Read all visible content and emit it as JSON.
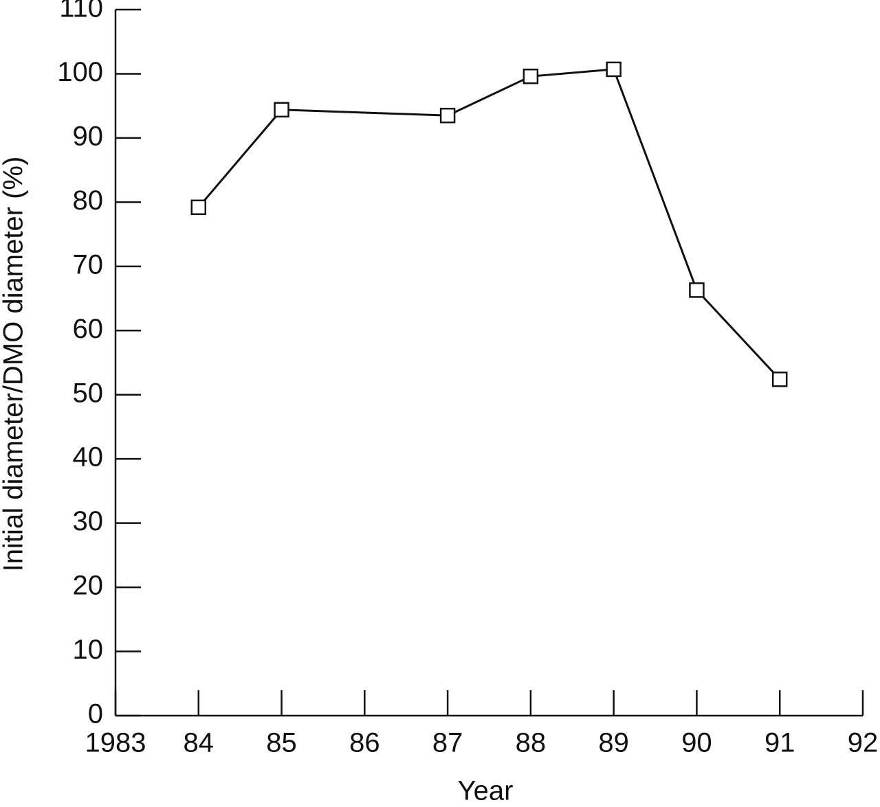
{
  "chart_data": {
    "type": "line",
    "x_label": "Year",
    "y_label": "Initial diameter/DMO diameter (%)",
    "x": [
      1984,
      1985,
      1987,
      1988,
      1989,
      1990,
      1991
    ],
    "values": [
      79.2,
      94.4,
      93.5,
      99.6,
      100.7,
      66.3,
      52.4
    ],
    "color": "#111111",
    "marker": "square",
    "xlim": [
      1983,
      1992
    ],
    "xticks": [
      1983,
      {
        "value": 1984,
        "label": "84"
      },
      {
        "value": 1985,
        "label": "85"
      },
      {
        "value": 1986,
        "label": "86"
      },
      {
        "value": 1987,
        "label": "87"
      },
      {
        "value": 1988,
        "label": "88"
      },
      {
        "value": 1989,
        "label": "89"
      },
      {
        "value": 1990,
        "label": "90"
      },
      {
        "value": 1991,
        "label": "91"
      },
      {
        "value": 1992,
        "label": "92"
      }
    ],
    "ylim": [
      0,
      110
    ],
    "yticks": [
      0,
      10,
      20,
      30,
      40,
      50,
      60,
      70,
      80,
      90,
      100,
      110
    ]
  }
}
